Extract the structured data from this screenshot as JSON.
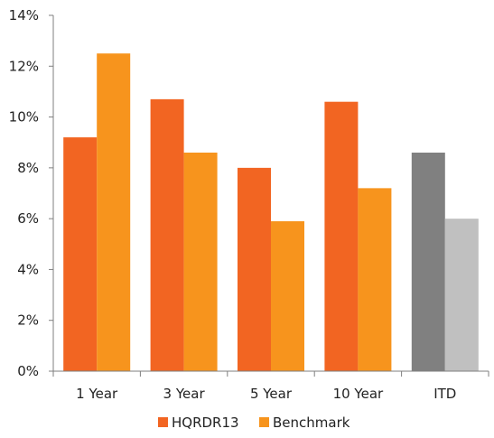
{
  "chart_data": {
    "type": "bar",
    "title": "",
    "xlabel": "",
    "ylabel": "",
    "ylim": [
      0,
      14
    ],
    "y_ticks": [
      "0%",
      "2%",
      "4%",
      "6%",
      "8%",
      "10%",
      "12%",
      "14%"
    ],
    "categories": [
      "1 Year",
      "3 Year",
      "5 Year",
      "10 Year",
      "ITD"
    ],
    "series": [
      {
        "name": "HQRDR13",
        "values": [
          9.2,
          10.7,
          8.0,
          10.6,
          8.6
        ],
        "color": "#F26522",
        "colors": [
          "#F26522",
          "#F26522",
          "#F26522",
          "#F26522",
          "#808080"
        ]
      },
      {
        "name": "Benchmark",
        "values": [
          12.5,
          8.6,
          5.9,
          7.2,
          6.0
        ],
        "color": "#F7941D",
        "colors": [
          "#F7941D",
          "#F7941D",
          "#F7941D",
          "#F7941D",
          "#C0C0C0"
        ]
      }
    ],
    "grid": false,
    "legend_position": "bottom"
  }
}
